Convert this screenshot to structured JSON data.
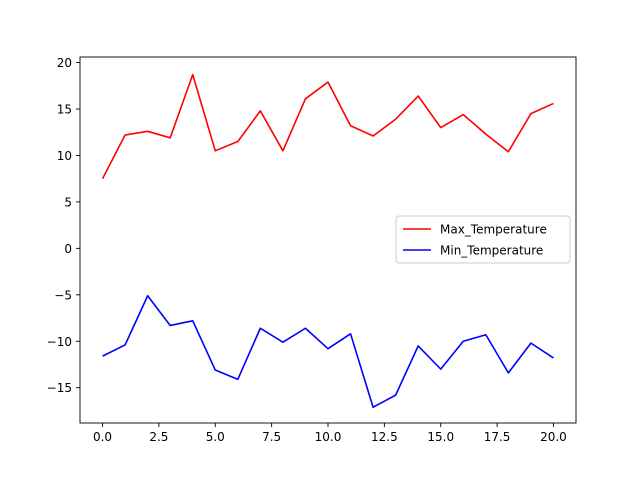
{
  "chart_data": {
    "type": "line",
    "title": "",
    "xlabel": "",
    "ylabel": "",
    "xlim": [
      -1.0,
      21.0
    ],
    "ylim": [
      -18.8,
      20.6
    ],
    "x_ticks": [
      0.0,
      2.5,
      5.0,
      7.5,
      10.0,
      12.5,
      15.0,
      17.5,
      20.0
    ],
    "x_tick_labels": [
      "0.0",
      "2.5",
      "5.0",
      "7.5",
      "10.0",
      "12.5",
      "15.0",
      "17.5",
      "20.0"
    ],
    "y_ticks": [
      -15,
      -10,
      -5,
      0,
      5,
      10,
      15,
      20
    ],
    "y_tick_labels": [
      "−15",
      "−10",
      "−5",
      "0",
      "5",
      "10",
      "15",
      "20"
    ],
    "grid": false,
    "legend_position": "center-right",
    "x": [
      0,
      1,
      2,
      3,
      4,
      5,
      6,
      7,
      8,
      9,
      10,
      11,
      12,
      13,
      14,
      15,
      16,
      17,
      18,
      19,
      20
    ],
    "series": [
      {
        "name": "Max_Temperature",
        "color": "#ff0000",
        "values": [
          7.5,
          12.2,
          12.6,
          11.9,
          18.7,
          10.5,
          11.5,
          14.8,
          10.5,
          16.1,
          17.9,
          13.2,
          12.1,
          13.9,
          16.4,
          13.0,
          14.4,
          12.3,
          10.4,
          14.5,
          15.6
        ]
      },
      {
        "name": "Min_Temperature",
        "color": "#0000ff",
        "values": [
          -11.6,
          -10.4,
          -5.1,
          -8.3,
          -7.8,
          -13.1,
          -14.1,
          -8.6,
          -10.1,
          -8.6,
          -10.8,
          -9.2,
          -17.1,
          -15.8,
          -10.5,
          -13.0,
          -10.0,
          -9.3,
          -13.4,
          -10.2,
          -11.8
        ]
      }
    ]
  }
}
